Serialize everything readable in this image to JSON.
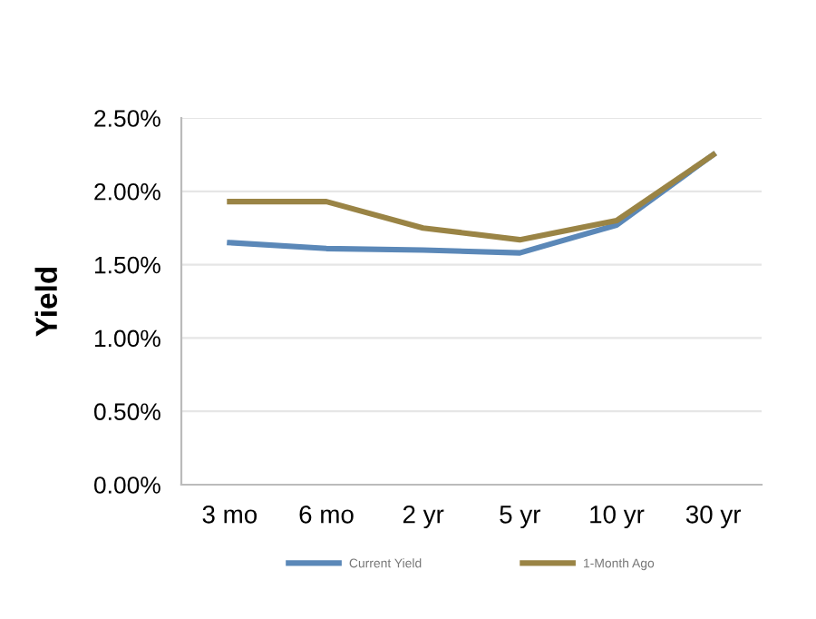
{
  "chart_data": {
    "type": "line",
    "ylabel": "Yield",
    "categories": [
      "3 mo",
      "6 mo",
      "2 yr",
      "5 yr",
      "10 yr",
      "30 yr"
    ],
    "series": [
      {
        "name": "Current Yield",
        "color": "#5b88b8",
        "values": [
          1.65,
          1.61,
          1.6,
          1.58,
          1.77,
          2.25
        ]
      },
      {
        "name": "1-Month Ago",
        "color": "#9a8445",
        "values": [
          1.93,
          1.93,
          1.75,
          1.67,
          1.8,
          2.25
        ]
      }
    ],
    "ylim": [
      0,
      2.5
    ],
    "yticks": [
      {
        "value": 0,
        "label": "0.00%"
      },
      {
        "value": 0.5,
        "label": "0.50%"
      },
      {
        "value": 1,
        "label": "1.00%"
      },
      {
        "value": 1.5,
        "label": "1.50%"
      },
      {
        "value": 2,
        "label": "2.00%"
      },
      {
        "value": 2.5,
        "label": "2.50%"
      }
    ],
    "grid": "y",
    "legend": "bottom",
    "marker": "none",
    "line_style": "solid"
  }
}
